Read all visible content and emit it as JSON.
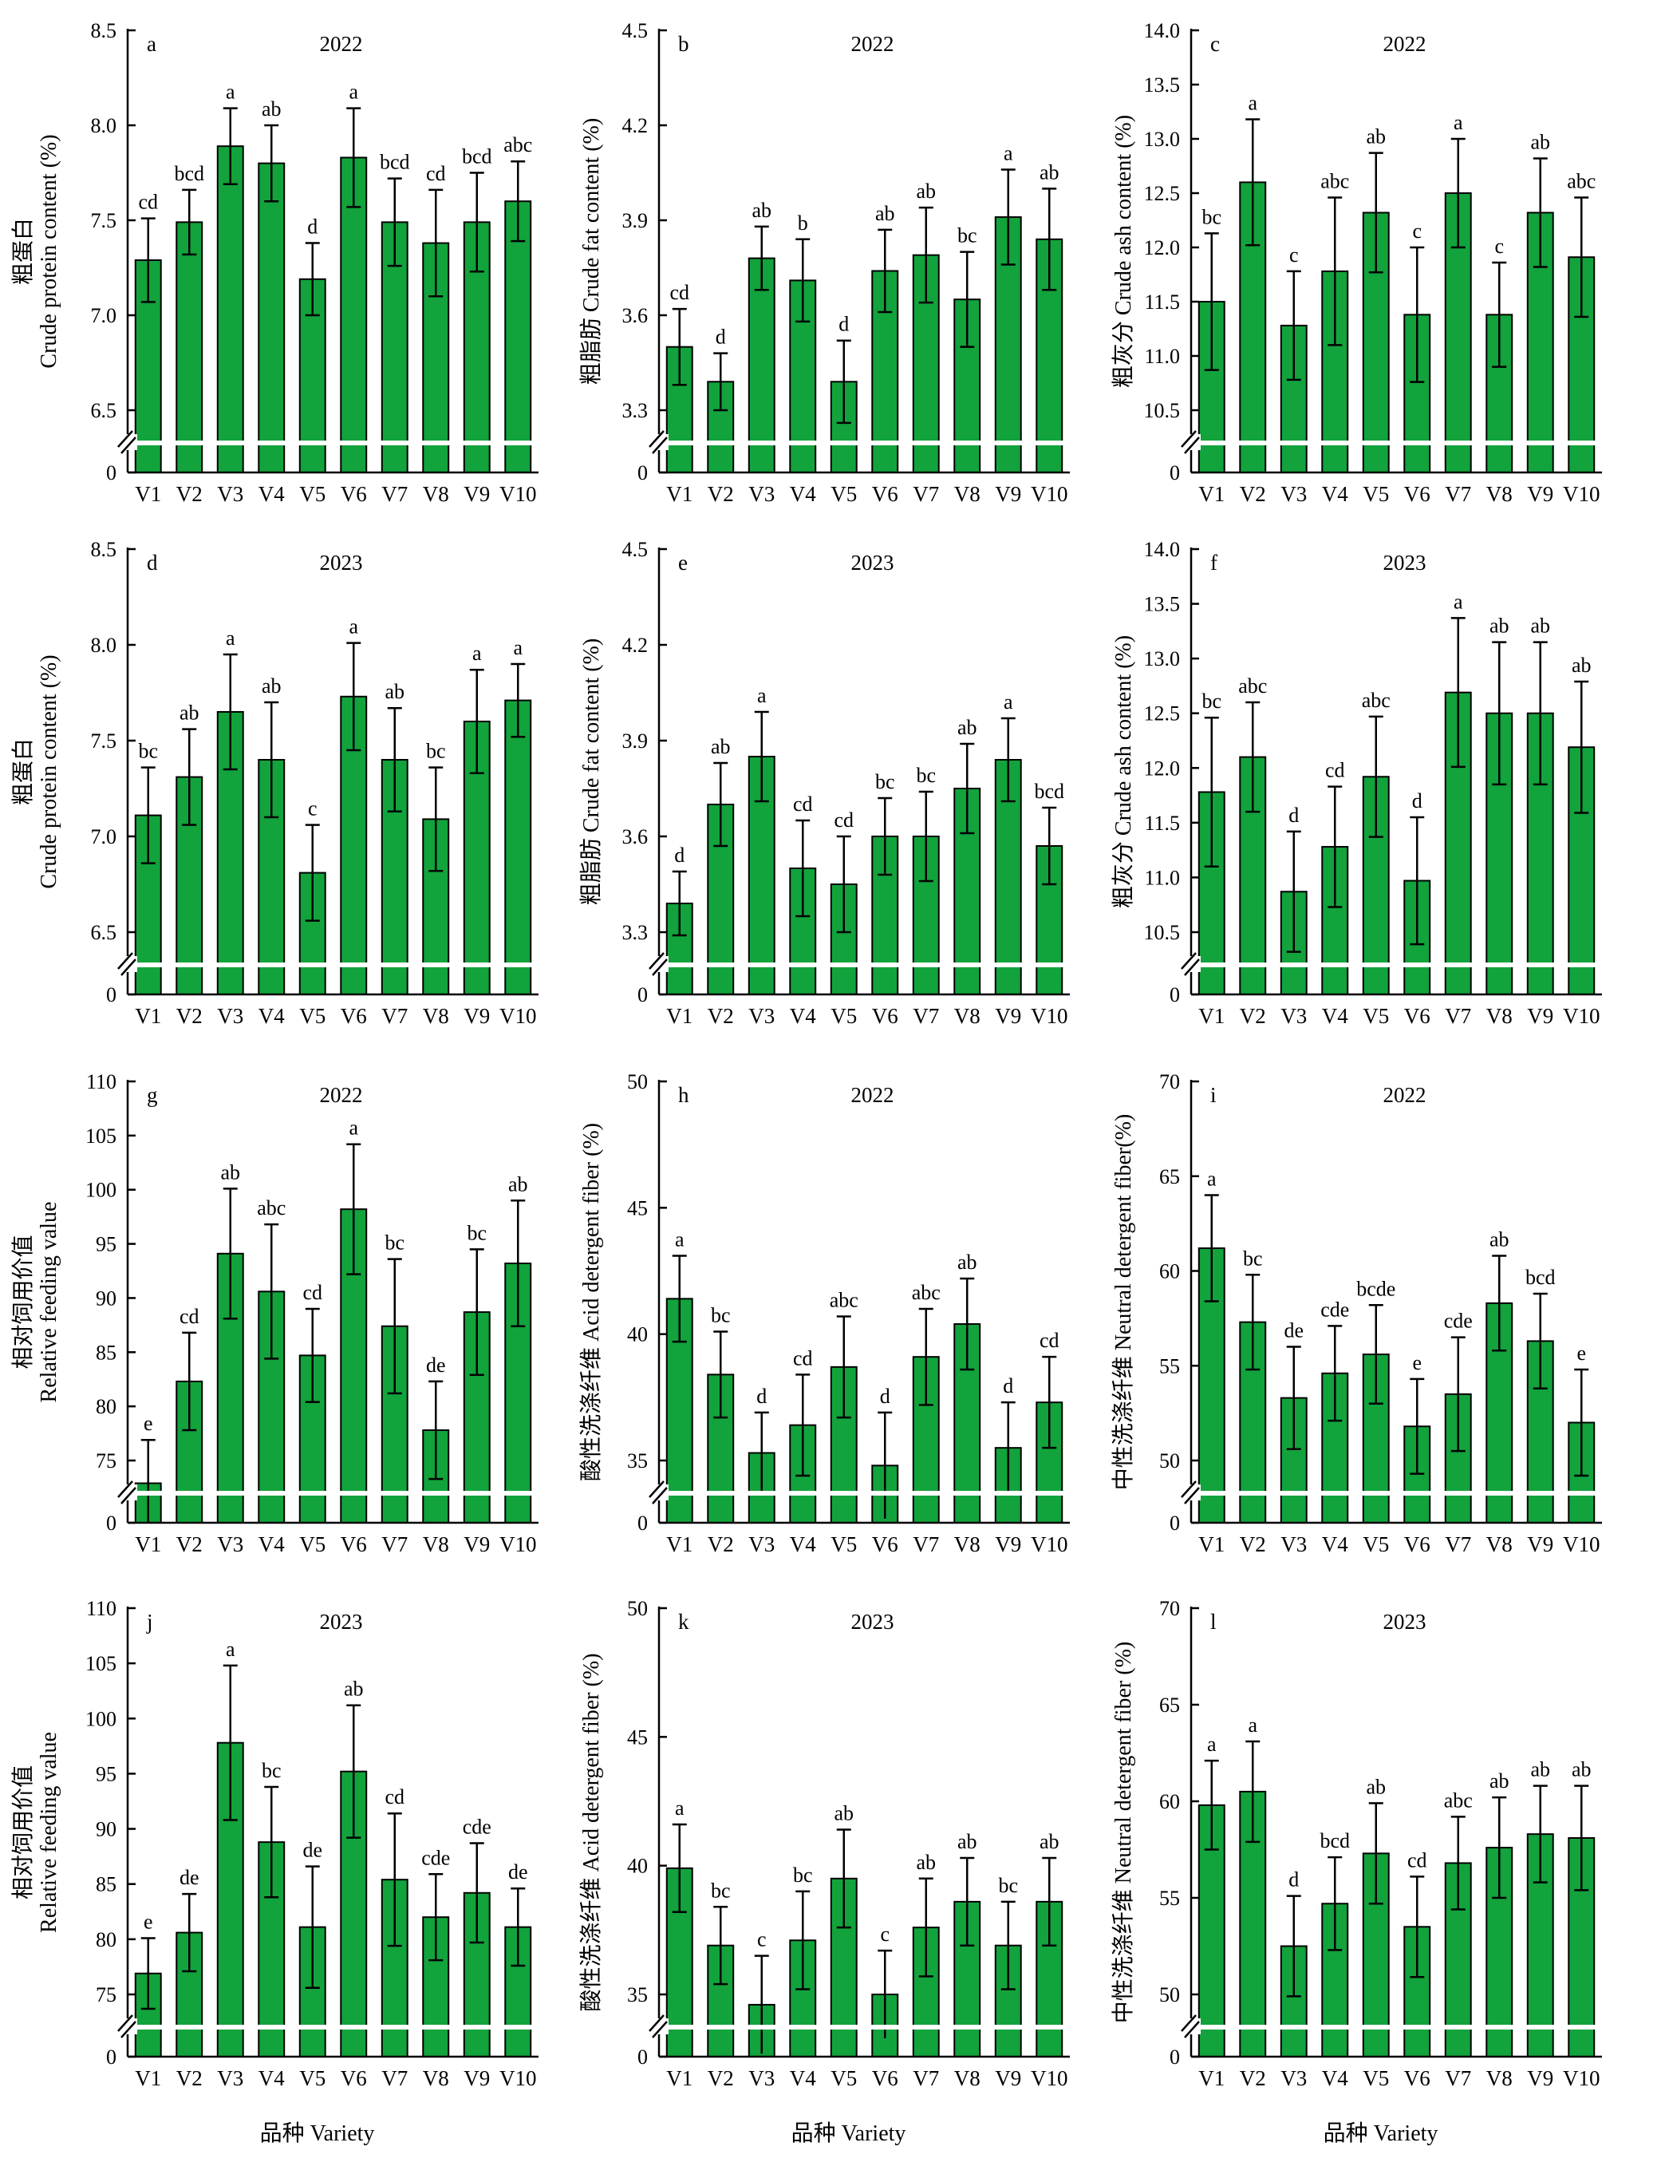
{
  "xlabel": "品种 Variety",
  "categories_label": [
    "V1",
    "V2",
    "V3",
    "V4",
    "V5",
    "V6",
    "V7",
    "V8",
    "V9",
    "V10"
  ],
  "colors": {
    "bar": "#12a33c"
  },
  "chart_data": [
    {
      "type": "bar",
      "panel": "a",
      "year": "2022",
      "ylabel_cn": "粗蛋白",
      "ylabel_en": "Crude protein content (%)",
      "ylim": [
        6.0,
        8.5
      ],
      "break_at": 6.5,
      "ticks": [
        0,
        6.5,
        7.0,
        7.5,
        8.0,
        8.5
      ],
      "categories": [
        "V1",
        "V2",
        "V3",
        "V4",
        "V5",
        "V6",
        "V7",
        "V8",
        "V9",
        "V10"
      ],
      "values": [
        7.29,
        7.49,
        7.89,
        7.8,
        7.19,
        7.83,
        7.49,
        7.38,
        7.49,
        7.6
      ],
      "errors": [
        0.22,
        0.17,
        0.2,
        0.2,
        0.19,
        0.26,
        0.23,
        0.28,
        0.26,
        0.21
      ],
      "letters": [
        "cd",
        "bcd",
        "a",
        "ab",
        "d",
        "a",
        "bcd",
        "cd",
        "bcd",
        "abc"
      ]
    },
    {
      "type": "bar",
      "panel": "b",
      "year": "2022",
      "ylabel_cn": "粗脂肪",
      "ylabel_en": "Crude fat content (%)",
      "ylim": [
        3.2,
        4.5
      ],
      "break_at": 3.3,
      "ticks": [
        0,
        3.3,
        3.6,
        3.9,
        4.2,
        4.5
      ],
      "categories": [
        "V1",
        "V2",
        "V3",
        "V4",
        "V5",
        "V6",
        "V7",
        "V8",
        "V9",
        "V10"
      ],
      "values": [
        3.5,
        3.39,
        3.78,
        3.71,
        3.39,
        3.74,
        3.79,
        3.65,
        3.91,
        3.84
      ],
      "errors": [
        0.12,
        0.09,
        0.1,
        0.13,
        0.13,
        0.13,
        0.15,
        0.15,
        0.15,
        0.16
      ],
      "letters": [
        "cd",
        "d",
        "ab",
        "b",
        "d",
        "ab",
        "ab",
        "bc",
        "a",
        "ab"
      ]
    },
    {
      "type": "bar",
      "panel": "c",
      "year": "2022",
      "ylabel_cn": "粗灰分",
      "ylabel_en": "Crude ash content (%)",
      "ylim": [
        10.0,
        14.0
      ],
      "break_at": 10.5,
      "ticks": [
        0,
        10.5,
        11.0,
        11.5,
        12.0,
        12.5,
        13.0,
        13.5,
        14.0
      ],
      "categories": [
        "V1",
        "V2",
        "V3",
        "V4",
        "V5",
        "V6",
        "V7",
        "V8",
        "V9",
        "V10"
      ],
      "values": [
        11.5,
        12.6,
        11.28,
        11.78,
        12.32,
        11.38,
        12.5,
        11.38,
        12.32,
        11.91
      ],
      "errors": [
        0.63,
        0.58,
        0.5,
        0.68,
        0.55,
        0.62,
        0.5,
        0.48,
        0.5,
        0.55
      ],
      "letters": [
        "bc",
        "a",
        "c",
        "abc",
        "ab",
        "c",
        "a",
        "c",
        "ab",
        "abc"
      ]
    },
    {
      "type": "bar",
      "panel": "d",
      "year": "2023",
      "ylabel_cn": "粗蛋白",
      "ylabel_en": "Crude protein content (%)",
      "ylim": [
        6.0,
        8.5
      ],
      "break_at": 6.5,
      "ticks": [
        0,
        6.5,
        7.0,
        7.5,
        8.0,
        8.5
      ],
      "categories": [
        "V1",
        "V2",
        "V3",
        "V4",
        "V5",
        "V6",
        "V7",
        "V8",
        "V9",
        "V10"
      ],
      "values": [
        7.11,
        7.31,
        7.65,
        7.4,
        6.81,
        7.73,
        7.4,
        7.09,
        7.6,
        7.71
      ],
      "errors": [
        0.25,
        0.25,
        0.3,
        0.3,
        0.25,
        0.28,
        0.27,
        0.27,
        0.27,
        0.19
      ],
      "letters": [
        "bc",
        "ab",
        "a",
        "ab",
        "c",
        "a",
        "ab",
        "bc",
        "a",
        "a"
      ]
    },
    {
      "type": "bar",
      "panel": "e",
      "year": "2023",
      "ylabel_cn": "粗脂肪",
      "ylabel_en": "Crude fat content (%)",
      "ylim": [
        3.2,
        4.5
      ],
      "break_at": 3.3,
      "ticks": [
        0,
        3.3,
        3.6,
        3.9,
        4.2,
        4.5
      ],
      "categories": [
        "V1",
        "V2",
        "V3",
        "V4",
        "V5",
        "V6",
        "V7",
        "V8",
        "V9",
        "V10"
      ],
      "values": [
        3.39,
        3.7,
        3.85,
        3.5,
        3.45,
        3.6,
        3.6,
        3.75,
        3.84,
        3.57
      ],
      "errors": [
        0.1,
        0.13,
        0.14,
        0.15,
        0.15,
        0.12,
        0.14,
        0.14,
        0.13,
        0.12
      ],
      "letters": [
        "d",
        "ab",
        "a",
        "cd",
        "cd",
        "bc",
        "bc",
        "ab",
        "a",
        "bcd"
      ]
    },
    {
      "type": "bar",
      "panel": "f",
      "year": "2023",
      "ylabel_cn": "粗灰分",
      "ylabel_en": "Crude ash content (%)",
      "ylim": [
        10.0,
        14.0
      ],
      "break_at": 10.5,
      "ticks": [
        0,
        10.5,
        11.0,
        11.5,
        12.0,
        12.5,
        13.0,
        13.5,
        14.0
      ],
      "categories": [
        "V1",
        "V2",
        "V3",
        "V4",
        "V5",
        "V6",
        "V7",
        "V8",
        "V9",
        "V10"
      ],
      "values": [
        11.78,
        12.1,
        10.87,
        11.28,
        11.92,
        10.97,
        12.69,
        12.5,
        12.5,
        12.19
      ],
      "errors": [
        0.68,
        0.5,
        0.55,
        0.55,
        0.55,
        0.58,
        0.68,
        0.65,
        0.65,
        0.6
      ],
      "letters": [
        "bc",
        "abc",
        "d",
        "cd",
        "abc",
        "d",
        "a",
        "ab",
        "ab",
        "ab"
      ]
    },
    {
      "type": "bar",
      "panel": "g",
      "year": "2022",
      "ylabel_cn": "相对饲用价值",
      "ylabel_en": "Relative feeding value",
      "ylim": [
        70,
        110
      ],
      "break_at": 75,
      "ticks": [
        0,
        75,
        80,
        85,
        90,
        95,
        100,
        105,
        110
      ],
      "categories": [
        "V1",
        "V2",
        "V3",
        "V4",
        "V5",
        "V6",
        "V7",
        "V8",
        "V9",
        "V10"
      ],
      "values": [
        72.9,
        82.3,
        94.1,
        90.6,
        84.7,
        98.2,
        87.4,
        77.8,
        88.7,
        93.2
      ],
      "errors": [
        4.0,
        4.5,
        6.0,
        6.2,
        4.3,
        6.0,
        6.2,
        4.5,
        5.8,
        5.8
      ],
      "letters": [
        "e",
        "cd",
        "ab",
        "abc",
        "cd",
        "a",
        "bc",
        "de",
        "bc",
        "ab"
      ]
    },
    {
      "type": "bar",
      "panel": "h",
      "year": "2022",
      "ylabel_cn": "酸性洗涤纤维",
      "ylabel_en": "Acid detergent fiber (%)",
      "ylim": [
        30,
        50
      ],
      "break_at": 35,
      "ticks": [
        0,
        35,
        40,
        45,
        50
      ],
      "categories": [
        "V1",
        "V2",
        "V3",
        "V4",
        "V5",
        "V6",
        "V7",
        "V8",
        "V9",
        "V10"
      ],
      "values": [
        41.4,
        38.4,
        35.3,
        36.4,
        38.7,
        34.8,
        39.1,
        40.4,
        35.5,
        37.3
      ],
      "errors": [
        1.7,
        1.7,
        1.6,
        2.0,
        2.0,
        2.1,
        1.9,
        1.8,
        1.8,
        1.8
      ],
      "letters": [
        "a",
        "bc",
        "d",
        "cd",
        "abc",
        "d",
        "abc",
        "ab",
        "d",
        "cd"
      ]
    },
    {
      "type": "bar",
      "panel": "i",
      "year": "2022",
      "ylabel_cn": "中性洗涤纤维",
      "ylabel_en": "Neutral detergent fiber(%)",
      "ylim": [
        45,
        70
      ],
      "break_at": 50,
      "ticks": [
        0,
        50,
        55,
        60,
        65,
        70
      ],
      "categories": [
        "V1",
        "V2",
        "V3",
        "V4",
        "V5",
        "V6",
        "V7",
        "V8",
        "V9",
        "V10"
      ],
      "values": [
        61.2,
        57.3,
        53.3,
        54.6,
        55.6,
        51.8,
        53.5,
        58.3,
        56.3,
        52.0
      ],
      "errors": [
        2.8,
        2.5,
        2.7,
        2.5,
        2.6,
        2.5,
        3.0,
        2.5,
        2.5,
        2.8
      ],
      "letters": [
        "a",
        "bc",
        "de",
        "cde",
        "bcde",
        "e",
        "cde",
        "ab",
        "bcd",
        "e"
      ]
    },
    {
      "type": "bar",
      "panel": "j",
      "year": "2023",
      "ylabel_cn": "相对饲用价值",
      "ylabel_en": "Relative feeding value",
      "ylim": [
        70,
        110
      ],
      "break_at": 75,
      "ticks": [
        0,
        75,
        80,
        85,
        90,
        95,
        100,
        105,
        110
      ],
      "categories": [
        "V1",
        "V2",
        "V3",
        "V4",
        "V5",
        "V6",
        "V7",
        "V8",
        "V9",
        "V10"
      ],
      "values": [
        76.9,
        80.6,
        97.8,
        88.8,
        81.1,
        95.2,
        85.4,
        82.0,
        84.2,
        81.1
      ],
      "errors": [
        3.2,
        3.5,
        7.0,
        5.0,
        5.5,
        6.0,
        6.0,
        3.9,
        4.5,
        3.5
      ],
      "letters": [
        "e",
        "de",
        "a",
        "bc",
        "de",
        "ab",
        "cd",
        "cde",
        "cde",
        "de"
      ]
    },
    {
      "type": "bar",
      "panel": "k",
      "year": "2023",
      "ylabel_cn": "酸性洗涤纤维",
      "ylabel_en": "Acid detergent fiber (%)",
      "ylim": [
        30,
        50
      ],
      "break_at": 35,
      "ticks": [
        0,
        35,
        40,
        45,
        50
      ],
      "categories": [
        "V1",
        "V2",
        "V3",
        "V4",
        "V5",
        "V6",
        "V7",
        "V8",
        "V9",
        "V10"
      ],
      "values": [
        39.9,
        36.9,
        34.6,
        37.1,
        39.5,
        35.0,
        37.6,
        38.6,
        36.9,
        38.6
      ],
      "errors": [
        1.7,
        1.5,
        1.9,
        1.9,
        1.9,
        1.7,
        1.9,
        1.7,
        1.7,
        1.7
      ],
      "letters": [
        "a",
        "bc",
        "c",
        "bc",
        "ab",
        "c",
        "ab",
        "ab",
        "bc",
        "ab"
      ]
    },
    {
      "type": "bar",
      "panel": "l",
      "year": "2023",
      "ylabel_cn": "中性洗涤纤维",
      "ylabel_en": "Neutral detergent fiber (%)",
      "ylim": [
        45,
        70
      ],
      "break_at": 50,
      "ticks": [
        0,
        50,
        55,
        60,
        65,
        70
      ],
      "categories": [
        "V1",
        "V2",
        "V3",
        "V4",
        "V5",
        "V6",
        "V7",
        "V8",
        "V9",
        "V10"
      ],
      "values": [
        59.8,
        60.5,
        52.5,
        54.7,
        57.3,
        53.5,
        56.8,
        57.6,
        58.3,
        58.1
      ],
      "errors": [
        2.3,
        2.6,
        2.6,
        2.4,
        2.6,
        2.6,
        2.4,
        2.6,
        2.5,
        2.7
      ],
      "letters": [
        "a",
        "a",
        "d",
        "bcd",
        "ab",
        "cd",
        "abc",
        "ab",
        "ab",
        "ab"
      ]
    }
  ]
}
